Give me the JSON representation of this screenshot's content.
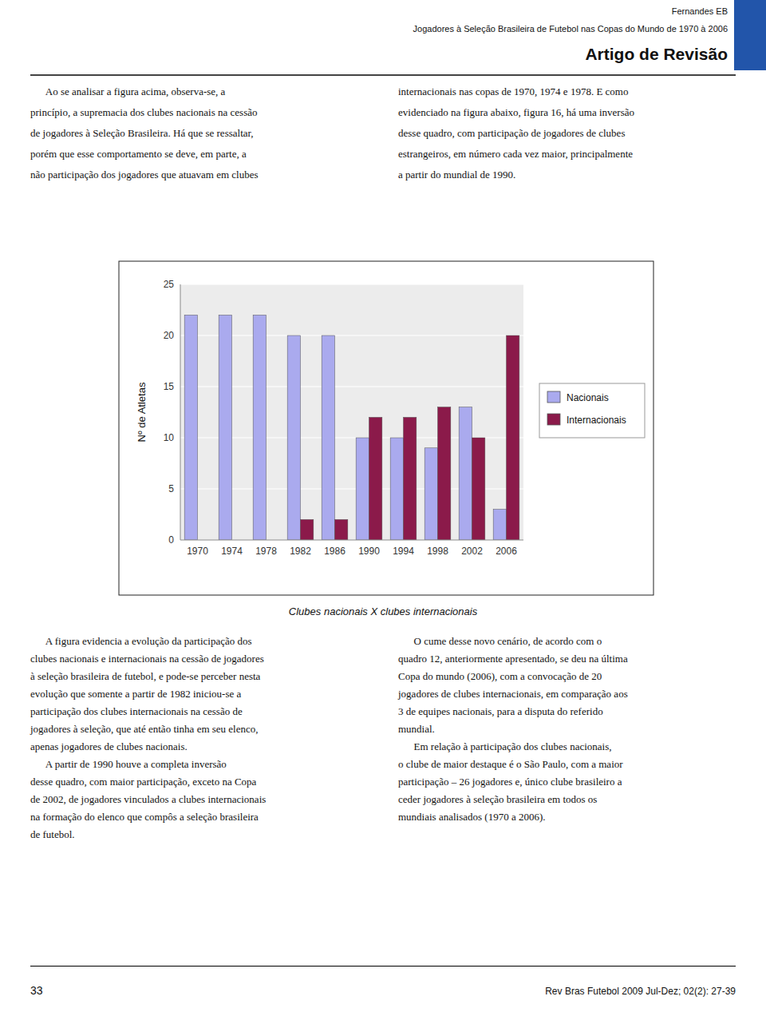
{
  "header_line1": "Fernandes EB",
  "header_line2": "Jogadores à Seleção Brasileira de Futebol nas Copas do Mundo de 1970 à 2006",
  "header_line3": "Artigo de Revisão",
  "text_left_col": [
    "      Ao se analisar a figura acima, observa-se, a",
    "princípio, a supremacia dos clubes nacionais na cessão",
    "de jogadores à Seleção Brasileira. Há que se ressaltar,",
    "porém que esse comportamento se deve, em parte, a",
    "não participação dos jogadores que atuavam em clubes"
  ],
  "text_right_col": [
    "internacionais nas copas de 1970, 1974 e 1978. E como",
    "evidenciado na figura abaixo, figura 16, há uma inversão",
    "desse quadro, com participação de jogadores de clubes",
    "estrangeiros, em número cada vez maior, principalmente",
    "a partir do mundial de 1990."
  ],
  "caption": "Clubes nacionais X clubes internacionais",
  "lower_left_col": [
    "      A figura evidencia a evolução da participação dos",
    "clubes nacionais e internacionais na cessão de jogadores",
    "à seleção brasileira de futebol, e pode-se perceber nesta",
    "evolução que somente a partir de 1982 iniciou-se a",
    "participação dos clubes internacionais na cessão de",
    "jogadores à seleção, que até então tinha em seu elenco,",
    "apenas jogadores de clubes nacionais.",
    "      A partir de 1990 houve a completa inversão",
    "desse quadro, com maior participação, exceto na Copa",
    "de 2002, de jogadores vinculados a clubes internacionais",
    "na formação do elenco que compôs a seleção brasileira",
    "de futebol."
  ],
  "lower_right_col": [
    "      O cume desse novo cenário, de acordo com o",
    "quadro 12, anteriormente apresentado, se deu na última",
    "Copa do mundo (2006), com a convocação de 20",
    "jogadores de clubes internacionais, em comparação aos",
    "3 de equipes nacionais, para a disputa do referido",
    "mundial.",
    "      Em relação à participação dos clubes nacionais,",
    "o clube de maior destaque é o São Paulo, com a maior",
    "participação – 26 jogadores e, único clube brasileiro a",
    "ceder jogadores à seleção brasileira em todos os",
    "mundiais analisados (1970 a 2006)."
  ],
  "page_number": "33",
  "footer_text": "Rev Bras Futebol 2009 Jul-Dez; 02(2): 27-39",
  "chart_data": {
    "type": "bar",
    "categories": [
      "1970",
      "1974",
      "1978",
      "1982",
      "1986",
      "1990",
      "1994",
      "1998",
      "2002",
      "2006"
    ],
    "series": [
      {
        "name": "Nacionais",
        "color": "#aaaaee",
        "values": [
          22,
          22,
          22,
          20,
          20,
          10,
          10,
          9,
          13,
          3
        ]
      },
      {
        "name": "Internacionais",
        "color": "#8b1a4a",
        "values": [
          0,
          0,
          0,
          2,
          2,
          12,
          12,
          13,
          10,
          20
        ]
      }
    ],
    "y_label": "Nº de Atletas",
    "ylim": [
      0,
      25
    ],
    "yticks": [
      0,
      5,
      10,
      15,
      20,
      25
    ],
    "grid": true,
    "legend": "right"
  }
}
